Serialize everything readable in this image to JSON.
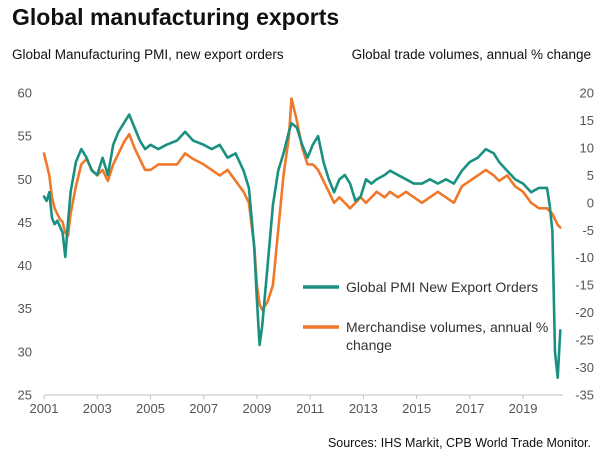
{
  "title": "Global manufacturing exports",
  "source": "Sources: IHS Markit,  CPB World Trade Monitor.",
  "chart_data": {
    "type": "line",
    "ylabel_left": "Global Manufacturing PMI, new export orders",
    "ylabel_right": "Global trade volumes,  annual % change",
    "ylim_left": [
      25,
      60
    ],
    "ylim_right": [
      -35,
      20
    ],
    "yticks_left": [
      25,
      30,
      35,
      40,
      45,
      50,
      55,
      60
    ],
    "yticks_right": [
      -35,
      -30,
      -25,
      -20,
      -15,
      -10,
      -5,
      0,
      5,
      10,
      15,
      20
    ],
    "xlim": [
      2001,
      2020.5
    ],
    "xticks": [
      2001,
      2003,
      2005,
      2007,
      2009,
      2011,
      2013,
      2015,
      2017,
      2019
    ],
    "legend": "center-right",
    "series": [
      {
        "name": "Global PMI New Export Orders",
        "axis": "left",
        "color": "#1a9081",
        "x": [
          2001.0,
          2001.1,
          2001.2,
          2001.3,
          2001.4,
          2001.5,
          2001.6,
          2001.7,
          2001.8,
          2001.9,
          2002.0,
          2002.2,
          2002.4,
          2002.6,
          2002.8,
          2003.0,
          2003.2,
          2003.4,
          2003.6,
          2003.8,
          2004.0,
          2004.2,
          2004.4,
          2004.6,
          2004.8,
          2005.0,
          2005.3,
          2005.6,
          2006.0,
          2006.3,
          2006.6,
          2007.0,
          2007.3,
          2007.6,
          2007.9,
          2008.2,
          2008.5,
          2008.7,
          2008.9,
          2009.0,
          2009.1,
          2009.2,
          2009.4,
          2009.6,
          2009.8,
          2010.0,
          2010.2,
          2010.3,
          2010.5,
          2010.7,
          2010.9,
          2011.1,
          2011.3,
          2011.5,
          2011.7,
          2011.9,
          2012.1,
          2012.3,
          2012.5,
          2012.7,
          2012.9,
          2013.1,
          2013.3,
          2013.5,
          2013.8,
          2014.0,
          2014.3,
          2014.6,
          2014.9,
          2015.2,
          2015.5,
          2015.8,
          2016.1,
          2016.4,
          2016.7,
          2017.0,
          2017.3,
          2017.6,
          2017.9,
          2018.1,
          2018.4,
          2018.7,
          2019.0,
          2019.3,
          2019.6,
          2019.9,
          2020.0,
          2020.1,
          2020.2,
          2020.3,
          2020.4
        ],
        "values": [
          48,
          47.5,
          48.5,
          45.5,
          44.8,
          45.2,
          44.5,
          43.8,
          41,
          45,
          48.5,
          52,
          53.5,
          52.5,
          51,
          50.5,
          52.5,
          50.5,
          54,
          55.5,
          56.5,
          57.5,
          56,
          54.5,
          53.5,
          54,
          53.5,
          54,
          54.5,
          55.5,
          54.5,
          54,
          53.5,
          54,
          52.5,
          53,
          51,
          49,
          42,
          36,
          30.8,
          33,
          40,
          47,
          51,
          53,
          55.5,
          56.5,
          56,
          54,
          52.5,
          54,
          55,
          52,
          50,
          48.5,
          50,
          50.5,
          49.5,
          47.5,
          48,
          50,
          49.5,
          50,
          50.5,
          51,
          50.5,
          50,
          49.5,
          49.5,
          50,
          49.5,
          50,
          49.5,
          51,
          52,
          52.5,
          53.5,
          53,
          52,
          51,
          50,
          49.5,
          48.5,
          49,
          49,
          47,
          44,
          30,
          27,
          32.5
        ]
      },
      {
        "name": "Merchandise volumes, annual % change",
        "axis": "right",
        "color": "#f0782a",
        "x": [
          2001.0,
          2001.1,
          2001.2,
          2001.3,
          2001.4,
          2001.5,
          2001.6,
          2001.7,
          2001.8,
          2001.9,
          2002.0,
          2002.2,
          2002.4,
          2002.6,
          2002.8,
          2003.0,
          2003.2,
          2003.4,
          2003.6,
          2003.8,
          2004.0,
          2004.2,
          2004.4,
          2004.6,
          2004.8,
          2005.0,
          2005.3,
          2005.6,
          2006.0,
          2006.3,
          2006.6,
          2007.0,
          2007.3,
          2007.6,
          2007.9,
          2008.2,
          2008.5,
          2008.7,
          2008.9,
          2009.0,
          2009.1,
          2009.2,
          2009.4,
          2009.6,
          2009.8,
          2010.0,
          2010.2,
          2010.3,
          2010.5,
          2010.7,
          2010.9,
          2011.1,
          2011.3,
          2011.5,
          2011.7,
          2011.9,
          2012.1,
          2012.3,
          2012.5,
          2012.7,
          2012.9,
          2013.1,
          2013.3,
          2013.5,
          2013.8,
          2014.0,
          2014.3,
          2014.6,
          2014.9,
          2015.2,
          2015.5,
          2015.8,
          2016.1,
          2016.4,
          2016.7,
          2017.0,
          2017.3,
          2017.6,
          2017.9,
          2018.1,
          2018.4,
          2018.7,
          2019.0,
          2019.3,
          2019.6,
          2019.9,
          2020.0,
          2020.1,
          2020.2,
          2020.3,
          2020.4
        ],
        "values": [
          9,
          7,
          5,
          1,
          -1,
          -2,
          -3,
          -3.5,
          -5.5,
          -6,
          -2,
          3,
          7,
          8,
          6,
          5,
          6,
          4,
          7,
          9,
          11,
          12.5,
          10,
          8,
          6,
          6,
          7,
          7,
          7,
          9,
          8,
          7,
          6,
          5,
          6,
          4,
          2,
          0,
          -8,
          -15,
          -18.5,
          -19.5,
          -18,
          -15,
          -5,
          5,
          12,
          19,
          15,
          10,
          7,
          7,
          6,
          4,
          2,
          0,
          1,
          0,
          -1,
          0,
          1,
          0,
          1,
          2,
          1,
          2,
          1,
          2,
          1,
          0,
          1,
          2,
          1,
          0,
          3,
          4,
          5,
          6,
          5,
          4,
          5,
          3,
          2,
          0,
          -1,
          -1,
          -1.5,
          -2,
          -3,
          -4,
          -4.5
        ]
      }
    ]
  }
}
